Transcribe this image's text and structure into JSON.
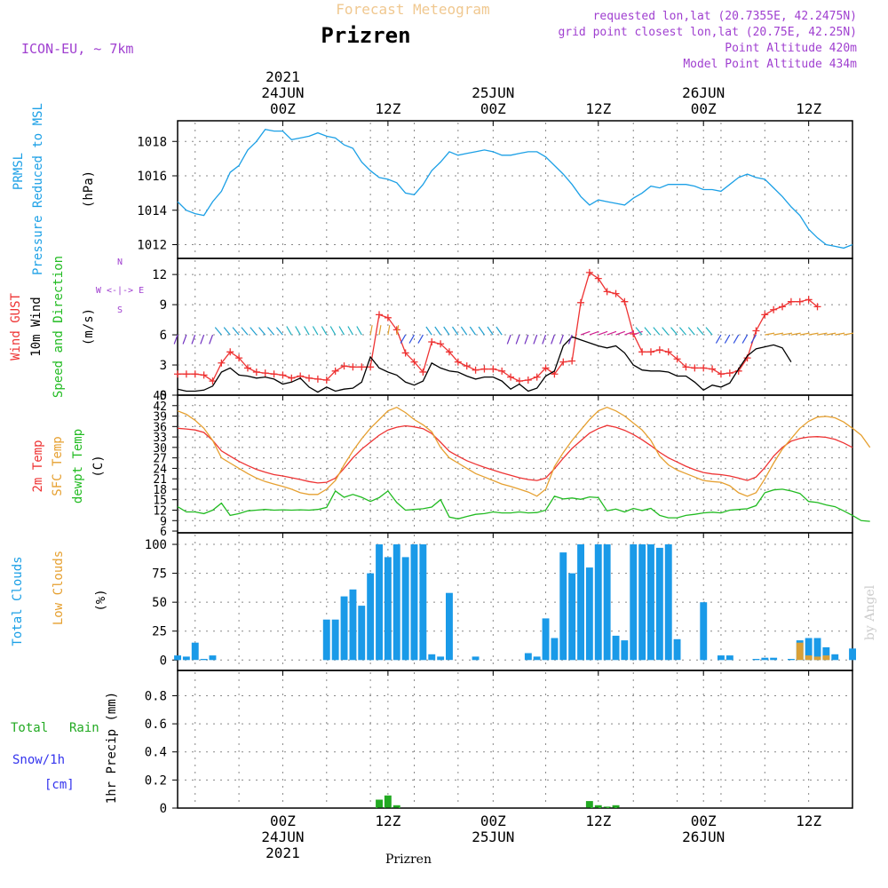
{
  "header": {
    "product": "Forecast Meteogram",
    "location": "Prizren",
    "model": "ICON-EU, ~ 7km",
    "requested": "requested lon,lat (20.7355E, 42.2475N)",
    "grid_point": "grid point closest lon,lat (20.75E, 42.25N)",
    "point_altitude": "Point Altitude 420m",
    "model_altitude": "Model Point Altitude 434m"
  },
  "footer": {
    "location": "Prizren",
    "credit": "by Angel"
  },
  "colors": {
    "pressure": "#1ca0e6",
    "gust": "#ee3333",
    "wind": "#000000",
    "sfc": "#e6a030",
    "dewpt": "#22bb22",
    "clouds_total": "#1a9ae8",
    "clouds_low": "#d8a038",
    "rain": "#22aa22",
    "purple": "#a040d0",
    "snow": "#3333ee"
  },
  "time_axis": {
    "top_ticks": [
      {
        "t": 12,
        "line1": "2021",
        "line2": "24JUN",
        "line3": "00Z"
      },
      {
        "t": 24,
        "line1": "",
        "line2": "",
        "line3": "12Z"
      },
      {
        "t": 36,
        "line1": "",
        "line2": "25JUN",
        "line3": "00Z"
      },
      {
        "t": 48,
        "line1": "",
        "line2": "",
        "line3": "12Z"
      },
      {
        "t": 60,
        "line1": "",
        "line2": "26JUN",
        "line3": "00Z"
      },
      {
        "t": 72,
        "line1": "",
        "line2": "",
        "line3": "12Z"
      }
    ],
    "bottom_ticks": [
      {
        "t": 12,
        "line1": "00Z",
        "line2": "24JUN",
        "line3": "2021"
      },
      {
        "t": 24,
        "line1": "12Z",
        "line2": "",
        "line3": ""
      },
      {
        "t": 36,
        "line1": "00Z",
        "line2": "25JUN",
        "line3": ""
      },
      {
        "t": 48,
        "line1": "12Z",
        "line2": "",
        "line3": ""
      },
      {
        "t": 60,
        "line1": "00Z",
        "line2": "26JUN",
        "line3": ""
      },
      {
        "t": 72,
        "line1": "12Z",
        "line2": "",
        "line3": ""
      }
    ]
  },
  "chart_data": [
    {
      "type": "line",
      "title": "PRMSL Pressure Reduced to MSL",
      "label_lines": [
        "PRMSL",
        "Pressure Reduced to MSL"
      ],
      "unit": "(hPa)",
      "xlim": [
        0,
        77
      ],
      "ylim": [
        1011.2,
        1019.2
      ],
      "yticks": [
        1012,
        1014,
        1016,
        1018
      ],
      "series": [
        {
          "name": "PRMSL",
          "color_key": "pressure",
          "values": [
            1014.5,
            1014.0,
            1013.8,
            1013.7,
            1014.5,
            1015.1,
            1016.2,
            1016.6,
            1017.5,
            1018.0,
            1018.7,
            1018.6,
            1018.6,
            1018.1,
            1018.2,
            1018.3,
            1018.5,
            1018.3,
            1018.2,
            1017.8,
            1017.6,
            1016.8,
            1016.3,
            1015.9,
            1015.8,
            1015.6,
            1015.0,
            1014.9,
            1015.5,
            1016.3,
            1016.8,
            1017.4,
            1017.2,
            1017.3,
            1017.4,
            1017.5,
            1017.4,
            1017.2,
            1017.2,
            1017.3,
            1017.4,
            1017.4,
            1017.1,
            1016.6,
            1016.1,
            1015.5,
            1014.8,
            1014.3,
            1014.6,
            1014.5,
            1014.4,
            1014.3,
            1014.7,
            1015.0,
            1015.4,
            1015.3,
            1015.5,
            1015.5,
            1015.5,
            1015.4,
            1015.2,
            1015.2,
            1015.1,
            1015.5,
            1015.9,
            1016.1,
            1015.9,
            1015.8,
            1015.3,
            1014.8,
            1014.2,
            1013.7,
            1012.9,
            1012.4,
            1012.0,
            1011.9,
            1011.8,
            1012.0
          ]
        }
      ]
    },
    {
      "type": "line",
      "title": "Wind GUST / 10m Wind Speed and Direction",
      "label_lines": [
        "Wind GUST",
        "10m Wind",
        "Speed and Direction"
      ],
      "unit": "(m/s)",
      "compass": [
        "N",
        "W <-|-> E",
        "S"
      ],
      "xlim": [
        0,
        77
      ],
      "ylim": [
        0,
        13.6
      ],
      "yticks": [
        0,
        3,
        6,
        9,
        12
      ],
      "series": [
        {
          "name": "Wind GUST",
          "color_key": "gust",
          "marker": "plus",
          "values": [
            2.1,
            2.1,
            2.1,
            2.0,
            1.4,
            3.2,
            4.3,
            3.7,
            2.7,
            2.3,
            2.2,
            2.1,
            2.0,
            1.7,
            1.9,
            1.7,
            1.6,
            1.5,
            2.4,
            2.9,
            2.8,
            2.8,
            2.8,
            8.0,
            7.7,
            6.5,
            4.2,
            3.3,
            2.3,
            5.3,
            5.1,
            4.3,
            3.3,
            2.9,
            2.5,
            2.6,
            2.6,
            2.4,
            1.8,
            1.4,
            1.5,
            1.8,
            2.7,
            2.1,
            3.3,
            3.4,
            9.2,
            12.2,
            11.6,
            10.3,
            10.1,
            9.3,
            6.1,
            4.3,
            4.3,
            4.5,
            4.3,
            3.6,
            2.8,
            2.7,
            2.7,
            2.6,
            2.1,
            2.2,
            2.4,
            3.7,
            6.4,
            8.0,
            8.5,
            8.8,
            9.3,
            9.3,
            9.5,
            8.8
          ]
        },
        {
          "name": "10m Wind",
          "color_key": "wind",
          "values": [
            0.6,
            0.4,
            0.4,
            0.5,
            0.9,
            2.3,
            2.7,
            2.0,
            1.9,
            1.7,
            1.8,
            1.6,
            1.1,
            1.3,
            1.7,
            0.8,
            0.3,
            0.8,
            0.4,
            0.6,
            0.7,
            1.3,
            3.8,
            2.7,
            2.3,
            2.0,
            1.3,
            1.0,
            1.4,
            3.2,
            2.7,
            2.4,
            2.3,
            1.9,
            1.6,
            1.8,
            1.8,
            1.4,
            0.6,
            1.1,
            0.4,
            0.7,
            1.9,
            2.4,
            4.9,
            5.8,
            5.5,
            5.2,
            4.9,
            4.7,
            4.9,
            4.2,
            3.0,
            2.5,
            2.4,
            2.4,
            2.3,
            1.9,
            1.9,
            1.3,
            0.5,
            1.0,
            0.8,
            1.2,
            2.6,
            3.9,
            4.6,
            4.8,
            5.0,
            4.7,
            3.3
          ]
        }
      ]
    },
    {
      "type": "line",
      "title": "2m Temp / SFC Temp / dewpt Temp",
      "label_lines": [
        "2m Temp",
        "SFC Temp",
        "dewpt Temp"
      ],
      "unit": "(C)",
      "xlim": [
        0,
        77
      ],
      "ylim": [
        5.5,
        45
      ],
      "yticks": [
        6,
        9,
        12,
        15,
        18,
        21,
        24,
        27,
        30,
        33,
        36,
        39,
        42,
        45
      ],
      "series": [
        {
          "name": "2m Temp",
          "color_key": "gust",
          "values": [
            35.5,
            35.3,
            35.0,
            34.3,
            32.0,
            29.0,
            27.5,
            26.0,
            24.8,
            23.7,
            22.9,
            22.2,
            21.8,
            21.3,
            20.8,
            20.2,
            19.8,
            20.0,
            21.2,
            24.0,
            27.0,
            29.5,
            31.5,
            33.5,
            35.0,
            35.8,
            36.2,
            35.9,
            35.4,
            34.0,
            31.5,
            28.9,
            27.5,
            26.2,
            25.2,
            24.3,
            23.5,
            22.7,
            22.0,
            21.3,
            20.8,
            20.5,
            21.2,
            23.9,
            26.9,
            29.7,
            31.9,
            34.1,
            35.4,
            36.3,
            35.8,
            34.9,
            33.7,
            32.2,
            30.5,
            28.6,
            27.0,
            25.8,
            24.6,
            23.6,
            22.8,
            22.4,
            22.2,
            21.8,
            21.2,
            20.5,
            21.5,
            24.2,
            27.5,
            30.0,
            31.8,
            32.6,
            33.0,
            33.1,
            32.9,
            32.3,
            31.3,
            30.0
          ]
        },
        {
          "name": "SFC Temp",
          "color_key": "sfc",
          "values": [
            40.5,
            39.5,
            37.8,
            35.5,
            32.0,
            27.0,
            25.5,
            24.0,
            22.5,
            21.2,
            20.2,
            19.5,
            18.8,
            18.0,
            17.0,
            16.5,
            16.5,
            18.0,
            20.5,
            25.0,
            29.0,
            32.5,
            35.5,
            38.0,
            40.5,
            41.5,
            40.0,
            38.0,
            36.5,
            34.5,
            30.0,
            27.0,
            25.5,
            24.0,
            22.5,
            21.5,
            20.5,
            19.5,
            18.8,
            18.0,
            17.2,
            16.0,
            18.0,
            24.5,
            28.5,
            32.0,
            35.0,
            38.0,
            40.5,
            41.5,
            40.5,
            39.0,
            37.0,
            35.0,
            32.0,
            27.5,
            25.0,
            23.5,
            22.5,
            21.5,
            20.5,
            20.2,
            20.0,
            19.0,
            17.0,
            16.0,
            17.0,
            21.0,
            25.5,
            29.5,
            32.5,
            35.5,
            37.5,
            38.7,
            38.9,
            38.5,
            37.3,
            35.5,
            33.5,
            30.0
          ]
        },
        {
          "name": "dewpt Temp",
          "color_key": "dewpt",
          "values": [
            13.0,
            11.5,
            11.5,
            11.0,
            12.0,
            14.0,
            10.5,
            11.0,
            11.8,
            12.0,
            12.2,
            12.0,
            12.1,
            12.0,
            12.1,
            12.0,
            12.2,
            12.8,
            17.5,
            15.7,
            16.5,
            15.7,
            14.5,
            15.6,
            17.5,
            14.2,
            12.0,
            12.2,
            12.4,
            12.9,
            15.0,
            10.0,
            9.5,
            10.2,
            10.8,
            11.0,
            11.5,
            11.2,
            11.2,
            11.5,
            11.2,
            11.3,
            12.0,
            16.0,
            15.2,
            15.5,
            15.1,
            15.8,
            15.6,
            11.8,
            12.3,
            11.5,
            12.5,
            11.9,
            12.5,
            10.5,
            9.8,
            9.8,
            10.5,
            10.8,
            11.2,
            11.4,
            11.2,
            12.0,
            12.2,
            12.4,
            13.3,
            17.0,
            17.8,
            18.0,
            17.5,
            16.8,
            14.5,
            14.2,
            13.5,
            13.0,
            11.8,
            10.5,
            9.0,
            8.8
          ]
        }
      ]
    },
    {
      "type": "bar",
      "title": "Total Clouds / Low Clouds",
      "label_lines": [
        "Total Clouds",
        "Low Clouds"
      ],
      "unit": "(%)",
      "xlim": [
        0,
        77
      ],
      "ylim": [
        -9,
        110
      ],
      "yticks": [
        0,
        25,
        50,
        75,
        100
      ],
      "series": [
        {
          "name": "Total Clouds",
          "color_key": "clouds_total",
          "values": [
            4,
            3,
            15,
            1,
            4,
            0,
            0,
            0,
            0,
            0,
            0,
            0,
            0,
            0,
            0,
            0,
            0,
            35,
            35,
            55,
            61,
            47,
            75,
            100,
            89,
            100,
            89,
            100,
            100,
            5,
            3,
            58,
            0,
            0,
            3,
            0,
            0,
            0,
            0,
            0,
            6,
            3,
            36,
            19,
            93,
            75,
            100,
            80,
            100,
            100,
            21,
            17,
            100,
            100,
            100,
            97,
            100,
            18,
            0,
            0,
            50,
            0,
            4,
            4,
            0,
            0,
            1,
            2,
            2,
            0,
            1,
            17,
            19,
            19,
            11,
            5,
            0,
            10
          ]
        },
        {
          "name": "Low Clouds",
          "color_key": "clouds_low",
          "values": [
            0,
            0,
            0,
            0,
            0,
            0,
            0,
            0,
            0,
            0,
            0,
            0,
            0,
            0,
            0,
            0,
            0,
            0,
            0,
            0,
            0,
            0,
            0,
            0,
            0,
            0,
            0,
            0,
            0,
            0,
            0,
            0,
            0,
            0,
            0,
            0,
            0,
            0,
            0,
            0,
            0,
            0,
            0,
            0,
            0,
            0,
            0,
            0,
            0,
            0,
            0,
            0,
            0,
            0,
            0,
            0,
            0,
            0,
            0,
            0,
            0,
            0,
            0,
            0,
            0,
            0,
            0,
            0,
            0,
            0,
            0,
            15,
            4,
            3,
            4,
            0,
            0,
            0
          ]
        }
      ]
    },
    {
      "type": "bar",
      "title": "1hr Precip (mm)",
      "label_lines": [
        "Total",
        "Rain",
        "Snow/1h",
        "[cm]",
        "1hr Precip (mm)"
      ],
      "xlim": [
        0,
        77
      ],
      "ylim": [
        0,
        0.98
      ],
      "yticks": [
        0,
        0.2,
        0.4,
        0.6,
        0.8
      ],
      "ytick_labels": [
        "0",
        "0.2",
        "0.4",
        "0.6",
        "0.8"
      ],
      "series": [
        {
          "name": "Total Rain",
          "color_key": "rain",
          "bars": [
            {
              "t": 23,
              "v": 0.06
            },
            {
              "t": 24,
              "v": 0.09
            },
            {
              "t": 25,
              "v": 0.02
            },
            {
              "t": 47,
              "v": 0.05
            },
            {
              "t": 48,
              "v": 0.02
            },
            {
              "t": 49,
              "v": 0.01
            },
            {
              "t": 50,
              "v": 0.02
            }
          ]
        }
      ]
    }
  ]
}
